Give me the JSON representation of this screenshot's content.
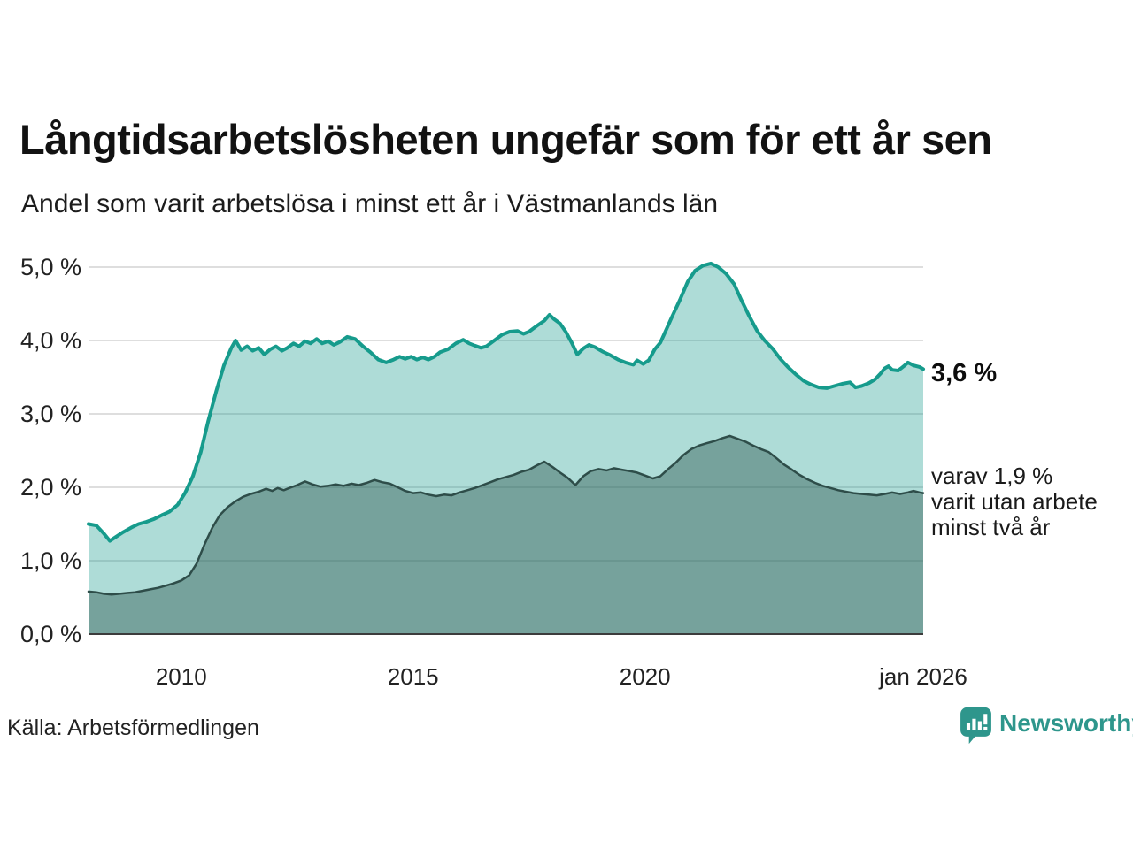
{
  "header": {
    "title": "Långtidsarbetslösheten ungefär som för ett år sen",
    "subtitle": "Andel som varit arbetslösa i minst ett år i Västmanlands län"
  },
  "annotations": {
    "value_label": "3,6 %",
    "note": "varav 1,9 %\nvarit utan arbete\nminst två år"
  },
  "footer": {
    "source": "Källa: Arbetsförmedlingen",
    "brand": "Newsworthy"
  },
  "colors": {
    "accent_line": "#169b8c",
    "accent_fill": "rgba(22,155,140,0.35)",
    "dark_line": "#2e4d49",
    "dark_fill": "rgba(51,91,85,0.45)",
    "grid": "#d4d4d4",
    "axis": "#3c3c3c",
    "brand": "#2e968c"
  },
  "chart_data": {
    "type": "area",
    "title": "Långtidsarbetslösheten ungefär som för ett år sen",
    "subtitle": "Andel som varit arbetslösa i minst ett år i Västmanlands län",
    "xlabel": "",
    "ylabel": "",
    "grid": true,
    "legend_position": "annotations-right",
    "x_axis": {
      "range": [
        2008,
        2026
      ],
      "ticks": [
        {
          "label": "2010",
          "year": 2010
        },
        {
          "label": "2015",
          "year": 2015
        },
        {
          "label": "2020",
          "year": 2020
        },
        {
          "label": "jan 2026",
          "year": 2026
        }
      ]
    },
    "y_axis": {
      "range": [
        0,
        5.2
      ],
      "unit": "%",
      "ticks": [
        {
          "label": "0,0 %",
          "value": 0
        },
        {
          "label": "1,0 %",
          "value": 1
        },
        {
          "label": "2,0 %",
          "value": 2
        },
        {
          "label": "3,0 %",
          "value": 3
        },
        {
          "label": "4,0 %",
          "value": 4
        },
        {
          "label": "5,0 %",
          "value": 5
        }
      ]
    },
    "series": [
      {
        "name": "arbetslösa minst ett år",
        "end_label": "3,6 %",
        "end_value": 3.6,
        "line_color": "#169b8c",
        "fill_color": "rgba(22,155,140,0.35)",
        "points": [
          [
            2008.0,
            1.5
          ],
          [
            2008.17,
            1.48
          ],
          [
            2008.33,
            1.37
          ],
          [
            2008.46,
            1.27
          ],
          [
            2008.58,
            1.32
          ],
          [
            2008.75,
            1.39
          ],
          [
            2008.92,
            1.45
          ],
          [
            2009.08,
            1.5
          ],
          [
            2009.25,
            1.53
          ],
          [
            2009.42,
            1.57
          ],
          [
            2009.58,
            1.62
          ],
          [
            2009.75,
            1.67
          ],
          [
            2009.92,
            1.76
          ],
          [
            2010.08,
            1.92
          ],
          [
            2010.25,
            2.15
          ],
          [
            2010.42,
            2.48
          ],
          [
            2010.58,
            2.9
          ],
          [
            2010.75,
            3.3
          ],
          [
            2010.92,
            3.66
          ],
          [
            2011.08,
            3.9
          ],
          [
            2011.17,
            4.0
          ],
          [
            2011.29,
            3.87
          ],
          [
            2011.42,
            3.92
          ],
          [
            2011.54,
            3.86
          ],
          [
            2011.67,
            3.9
          ],
          [
            2011.79,
            3.81
          ],
          [
            2011.92,
            3.88
          ],
          [
            2012.04,
            3.92
          ],
          [
            2012.17,
            3.86
          ],
          [
            2012.29,
            3.9
          ],
          [
            2012.42,
            3.96
          ],
          [
            2012.54,
            3.92
          ],
          [
            2012.67,
            3.99
          ],
          [
            2012.79,
            3.96
          ],
          [
            2012.92,
            4.02
          ],
          [
            2013.04,
            3.96
          ],
          [
            2013.17,
            3.99
          ],
          [
            2013.29,
            3.94
          ],
          [
            2013.42,
            3.98
          ],
          [
            2013.58,
            4.05
          ],
          [
            2013.75,
            4.02
          ],
          [
            2013.92,
            3.92
          ],
          [
            2014.08,
            3.84
          ],
          [
            2014.25,
            3.74
          ],
          [
            2014.42,
            3.7
          ],
          [
            2014.58,
            3.74
          ],
          [
            2014.71,
            3.78
          ],
          [
            2014.83,
            3.75
          ],
          [
            2014.96,
            3.78
          ],
          [
            2015.08,
            3.74
          ],
          [
            2015.21,
            3.77
          ],
          [
            2015.33,
            3.74
          ],
          [
            2015.46,
            3.78
          ],
          [
            2015.58,
            3.84
          ],
          [
            2015.75,
            3.88
          ],
          [
            2015.92,
            3.96
          ],
          [
            2016.08,
            4.01
          ],
          [
            2016.21,
            3.96
          ],
          [
            2016.33,
            3.93
          ],
          [
            2016.46,
            3.9
          ],
          [
            2016.58,
            3.92
          ],
          [
            2016.75,
            4.0
          ],
          [
            2016.92,
            4.08
          ],
          [
            2017.08,
            4.12
          ],
          [
            2017.25,
            4.13
          ],
          [
            2017.38,
            4.09
          ],
          [
            2017.5,
            4.12
          ],
          [
            2017.67,
            4.2
          ],
          [
            2017.83,
            4.27
          ],
          [
            2017.94,
            4.35
          ],
          [
            2018.04,
            4.29
          ],
          [
            2018.17,
            4.23
          ],
          [
            2018.29,
            4.12
          ],
          [
            2018.42,
            3.97
          ],
          [
            2018.54,
            3.81
          ],
          [
            2018.67,
            3.89
          ],
          [
            2018.79,
            3.94
          ],
          [
            2018.92,
            3.91
          ],
          [
            2019.08,
            3.85
          ],
          [
            2019.25,
            3.8
          ],
          [
            2019.42,
            3.74
          ],
          [
            2019.58,
            3.7
          ],
          [
            2019.75,
            3.67
          ],
          [
            2019.83,
            3.73
          ],
          [
            2019.96,
            3.68
          ],
          [
            2020.08,
            3.73
          ],
          [
            2020.21,
            3.88
          ],
          [
            2020.33,
            3.97
          ],
          [
            2020.46,
            4.15
          ],
          [
            2020.58,
            4.32
          ],
          [
            2020.75,
            4.55
          ],
          [
            2020.92,
            4.8
          ],
          [
            2021.08,
            4.95
          ],
          [
            2021.25,
            5.02
          ],
          [
            2021.42,
            5.05
          ],
          [
            2021.58,
            5.0
          ],
          [
            2021.75,
            4.91
          ],
          [
            2021.92,
            4.77
          ],
          [
            2022.08,
            4.55
          ],
          [
            2022.25,
            4.33
          ],
          [
            2022.42,
            4.13
          ],
          [
            2022.58,
            4.0
          ],
          [
            2022.75,
            3.89
          ],
          [
            2022.92,
            3.75
          ],
          [
            2023.08,
            3.64
          ],
          [
            2023.25,
            3.54
          ],
          [
            2023.42,
            3.45
          ],
          [
            2023.58,
            3.4
          ],
          [
            2023.75,
            3.36
          ],
          [
            2023.92,
            3.35
          ],
          [
            2024.08,
            3.38
          ],
          [
            2024.25,
            3.41
          ],
          [
            2024.42,
            3.43
          ],
          [
            2024.54,
            3.36
          ],
          [
            2024.67,
            3.38
          ],
          [
            2024.83,
            3.42
          ],
          [
            2024.96,
            3.47
          ],
          [
            2025.08,
            3.55
          ],
          [
            2025.17,
            3.62
          ],
          [
            2025.25,
            3.65
          ],
          [
            2025.33,
            3.6
          ],
          [
            2025.46,
            3.59
          ],
          [
            2025.58,
            3.65
          ],
          [
            2025.67,
            3.7
          ],
          [
            2025.79,
            3.66
          ],
          [
            2025.92,
            3.64
          ],
          [
            2026.0,
            3.61
          ]
        ]
      },
      {
        "name": "varav utan arbete minst två år",
        "end_label": "varav 1,9 %",
        "end_value": 1.9,
        "line_color": "#2e4d49",
        "fill_color": "rgba(51,91,85,0.45)",
        "points": [
          [
            2008.0,
            0.58
          ],
          [
            2008.17,
            0.57
          ],
          [
            2008.33,
            0.55
          ],
          [
            2008.5,
            0.54
          ],
          [
            2008.67,
            0.55
          ],
          [
            2008.83,
            0.56
          ],
          [
            2009.0,
            0.57
          ],
          [
            2009.17,
            0.59
          ],
          [
            2009.33,
            0.61
          ],
          [
            2009.5,
            0.63
          ],
          [
            2009.67,
            0.66
          ],
          [
            2009.83,
            0.69
          ],
          [
            2010.0,
            0.73
          ],
          [
            2010.17,
            0.8
          ],
          [
            2010.33,
            0.96
          ],
          [
            2010.5,
            1.22
          ],
          [
            2010.67,
            1.45
          ],
          [
            2010.83,
            1.62
          ],
          [
            2011.0,
            1.73
          ],
          [
            2011.17,
            1.81
          ],
          [
            2011.33,
            1.87
          ],
          [
            2011.5,
            1.91
          ],
          [
            2011.67,
            1.94
          ],
          [
            2011.83,
            1.98
          ],
          [
            2011.96,
            1.95
          ],
          [
            2012.08,
            1.99
          ],
          [
            2012.21,
            1.96
          ],
          [
            2012.33,
            1.99
          ],
          [
            2012.5,
            2.03
          ],
          [
            2012.67,
            2.08
          ],
          [
            2012.83,
            2.04
          ],
          [
            2013.0,
            2.01
          ],
          [
            2013.17,
            2.02
          ],
          [
            2013.33,
            2.04
          ],
          [
            2013.5,
            2.02
          ],
          [
            2013.67,
            2.05
          ],
          [
            2013.83,
            2.03
          ],
          [
            2014.0,
            2.06
          ],
          [
            2014.17,
            2.1
          ],
          [
            2014.33,
            2.07
          ],
          [
            2014.5,
            2.05
          ],
          [
            2014.67,
            2.0
          ],
          [
            2014.83,
            1.95
          ],
          [
            2015.0,
            1.92
          ],
          [
            2015.17,
            1.93
          ],
          [
            2015.33,
            1.9
          ],
          [
            2015.5,
            1.88
          ],
          [
            2015.67,
            1.9
          ],
          [
            2015.83,
            1.89
          ],
          [
            2016.0,
            1.93
          ],
          [
            2016.17,
            1.96
          ],
          [
            2016.33,
            1.99
          ],
          [
            2016.5,
            2.03
          ],
          [
            2016.67,
            2.07
          ],
          [
            2016.83,
            2.11
          ],
          [
            2017.0,
            2.14
          ],
          [
            2017.17,
            2.17
          ],
          [
            2017.33,
            2.21
          ],
          [
            2017.5,
            2.24
          ],
          [
            2017.67,
            2.3
          ],
          [
            2017.83,
            2.35
          ],
          [
            2018.0,
            2.28
          ],
          [
            2018.17,
            2.2
          ],
          [
            2018.33,
            2.13
          ],
          [
            2018.5,
            2.03
          ],
          [
            2018.67,
            2.15
          ],
          [
            2018.83,
            2.22
          ],
          [
            2019.0,
            2.25
          ],
          [
            2019.17,
            2.23
          ],
          [
            2019.33,
            2.26
          ],
          [
            2019.5,
            2.24
          ],
          [
            2019.67,
            2.22
          ],
          [
            2019.83,
            2.2
          ],
          [
            2020.0,
            2.16
          ],
          [
            2020.17,
            2.12
          ],
          [
            2020.33,
            2.15
          ],
          [
            2020.5,
            2.25
          ],
          [
            2020.67,
            2.34
          ],
          [
            2020.83,
            2.44
          ],
          [
            2021.0,
            2.52
          ],
          [
            2021.17,
            2.57
          ],
          [
            2021.33,
            2.6
          ],
          [
            2021.5,
            2.63
          ],
          [
            2021.67,
            2.67
          ],
          [
            2021.83,
            2.7
          ],
          [
            2022.0,
            2.66
          ],
          [
            2022.17,
            2.62
          ],
          [
            2022.33,
            2.57
          ],
          [
            2022.5,
            2.52
          ],
          [
            2022.67,
            2.48
          ],
          [
            2022.83,
            2.4
          ],
          [
            2023.0,
            2.31
          ],
          [
            2023.17,
            2.24
          ],
          [
            2023.33,
            2.17
          ],
          [
            2023.5,
            2.11
          ],
          [
            2023.67,
            2.06
          ],
          [
            2023.83,
            2.02
          ],
          [
            2024.0,
            1.99
          ],
          [
            2024.17,
            1.96
          ],
          [
            2024.33,
            1.94
          ],
          [
            2024.5,
            1.92
          ],
          [
            2024.67,
            1.91
          ],
          [
            2024.83,
            1.9
          ],
          [
            2025.0,
            1.89
          ],
          [
            2025.17,
            1.91
          ],
          [
            2025.33,
            1.93
          ],
          [
            2025.5,
            1.91
          ],
          [
            2025.67,
            1.93
          ],
          [
            2025.79,
            1.95
          ],
          [
            2025.92,
            1.93
          ],
          [
            2026.0,
            1.92
          ]
        ]
      }
    ]
  }
}
